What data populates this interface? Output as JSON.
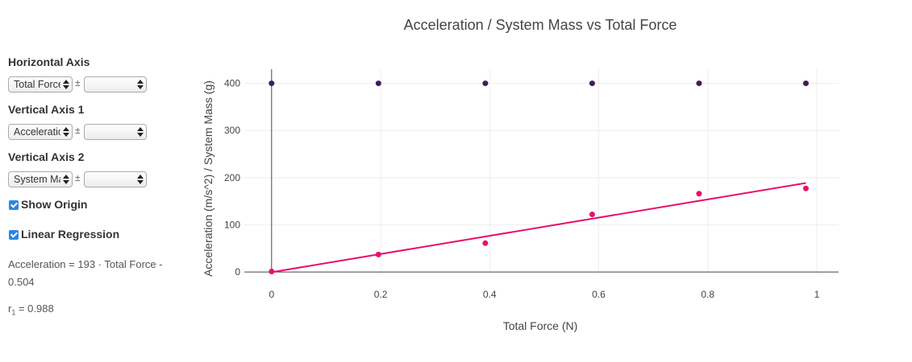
{
  "sidebar": {
    "horizontal_axis": {
      "label": "Horizontal Axis",
      "selected": "Total Force",
      "pm": "±",
      "uncertainty": ""
    },
    "vertical_axis_1": {
      "label": "Vertical Axis 1",
      "selected": "Acceleration",
      "pm": "±",
      "uncertainty": ""
    },
    "vertical_axis_2": {
      "label": "Vertical Axis 2",
      "selected": "System Mass",
      "pm": "±",
      "uncertainty": ""
    },
    "show_origin": {
      "label": "Show Origin",
      "checked": true
    },
    "linear_regression": {
      "label": "Linear Regression",
      "checked": true
    },
    "regression_equation_line1": "Acceleration = 193 · Total Force -",
    "regression_equation_line2": "0.504",
    "r_label": "r",
    "r_subscript": "1",
    "r_value": " = 0.988"
  },
  "chart_data": {
    "type": "scatter",
    "title": "Acceleration / System Mass vs Total Force",
    "xlabel": "Total Force (N)",
    "ylabel": "Acceleration (m/s^2) / System Mass (g)",
    "xlim": [
      -0.05,
      1.04
    ],
    "ylim": [
      -5,
      430
    ],
    "x_ticks": [
      0,
      0.2,
      0.4,
      0.6,
      0.8,
      1
    ],
    "x_tick_labels": [
      "0",
      "0.2",
      "0.4",
      "0.6",
      "0.8",
      "1"
    ],
    "y_ticks": [
      0,
      100,
      200,
      300,
      400
    ],
    "y_tick_labels": [
      "0",
      "100",
      "200",
      "300",
      "400"
    ],
    "grid": true,
    "series": [
      {
        "color": "#e8106b",
        "points": [
          [
            0,
            1
          ],
          [
            0.196,
            37
          ],
          [
            0.392,
            61
          ],
          [
            0.588,
            122
          ],
          [
            0.784,
            166
          ],
          [
            0.98,
            177
          ]
        ]
      },
      {
        "color": "#3f1d5a",
        "points": [
          [
            0,
            400
          ],
          [
            0.196,
            400
          ],
          [
            0.392,
            400
          ],
          [
            0.588,
            400
          ],
          [
            0.784,
            400
          ],
          [
            0.98,
            400
          ]
        ]
      }
    ],
    "regression": {
      "slope": 193,
      "intercept": -0.504,
      "x_range": [
        0,
        0.98
      ],
      "color": "#e8106b"
    }
  }
}
